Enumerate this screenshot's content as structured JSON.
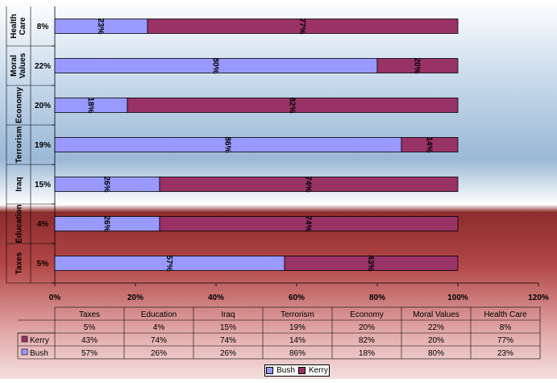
{
  "chart_data": {
    "type": "bar",
    "orientation": "horizontal",
    "stacked": true,
    "categories": [
      "Health Care",
      "Moral Values",
      "Economy",
      "Terrorism",
      "Iraq",
      "Education",
      "Taxes"
    ],
    "category_share": [
      "8%",
      "22%",
      "20%",
      "19%",
      "15%",
      "4%",
      "5%"
    ],
    "series": [
      {
        "name": "Bush",
        "color": "#9999ff",
        "values": [
          23,
          80,
          18,
          86,
          26,
          26,
          57
        ]
      },
      {
        "name": "Kerry",
        "color": "#993366",
        "values": [
          77,
          20,
          82,
          14,
          74,
          74,
          43
        ]
      }
    ],
    "xlim": [
      0,
      120
    ],
    "x_ticks": [
      "0%",
      "20%",
      "40%",
      "60%",
      "80%",
      "100%",
      "120%"
    ],
    "value_suffix": "%",
    "legend_position": "bottom",
    "data_table": {
      "columns": [
        "Taxes",
        "Education",
        "Iraq",
        "Terrorism",
        "Economy",
        "Moral Values",
        "Health Care"
      ],
      "rows": [
        {
          "label": "",
          "values": [
            "5%",
            "4%",
            "15%",
            "19%",
            "20%",
            "22%",
            "8%"
          ]
        },
        {
          "label": "Kerry",
          "values": [
            "43%",
            "74%",
            "74%",
            "14%",
            "82%",
            "20%",
            "77%"
          ]
        },
        {
          "label": "Bush",
          "values": [
            "57%",
            "26%",
            "26%",
            "86%",
            "18%",
            "80%",
            "23%"
          ]
        }
      ]
    },
    "legend": [
      "Bush",
      "Kerry"
    ]
  }
}
